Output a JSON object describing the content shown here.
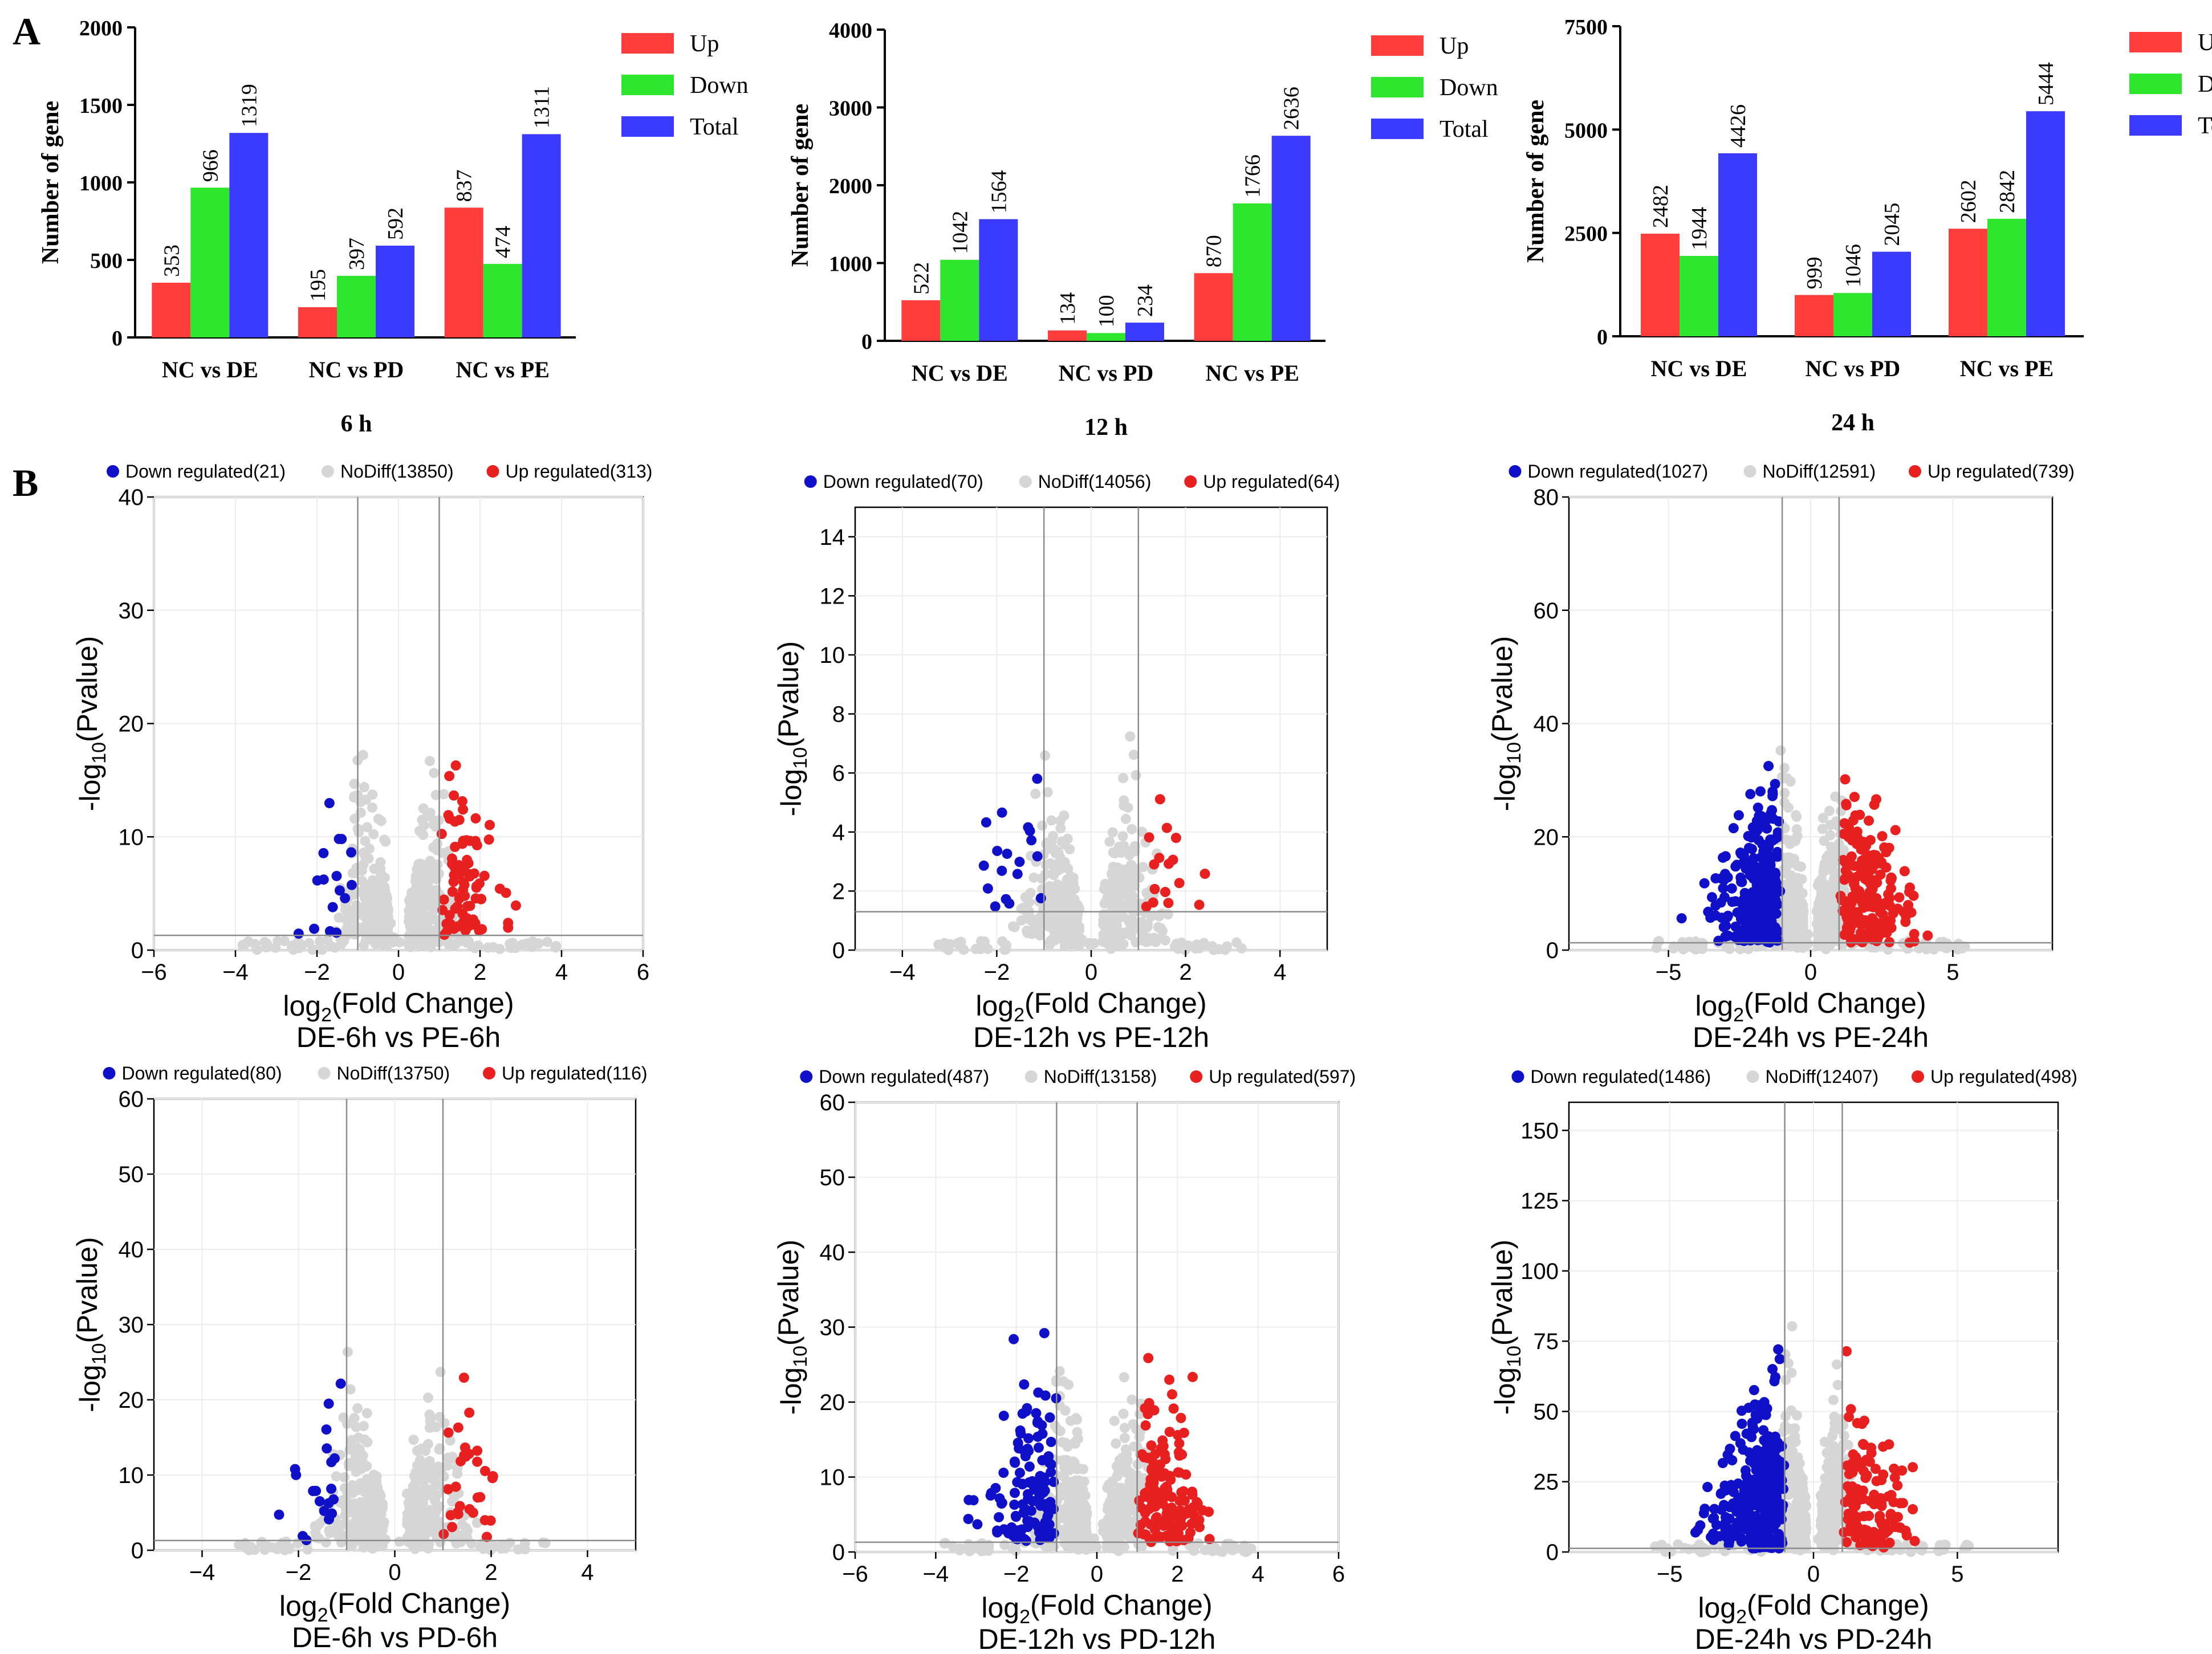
{
  "panel_labels": [
    "A",
    "B"
  ],
  "colors": {
    "up": "#ff3d3d",
    "down": "#2fe62f",
    "total": "#3b3bff",
    "volcano_down": "#1010c8",
    "volcano_up": "#e82020",
    "volcano_nodiff": "#d6d6d6"
  },
  "chart_data": [
    {
      "type": "bar",
      "title": "6 h",
      "ylabel": "Number of gene",
      "categories": [
        "NC vs DE",
        "NC vs PD",
        "NC vs PE"
      ],
      "series": [
        {
          "name": "Up",
          "values": [
            353,
            195,
            837
          ]
        },
        {
          "name": "Down",
          "values": [
            966,
            397,
            474
          ]
        },
        {
          "name": "Total",
          "values": [
            1319,
            592,
            1311
          ]
        }
      ],
      "ylim": [
        0,
        2000
      ],
      "yticks": [
        0,
        500,
        1000,
        1500,
        2000
      ],
      "legend": "top-right"
    },
    {
      "type": "bar",
      "title": "12 h",
      "ylabel": "Number of gene",
      "categories": [
        "NC vs DE",
        "NC vs PD",
        "NC vs PE"
      ],
      "series": [
        {
          "name": "Up",
          "values": [
            522,
            134,
            870
          ]
        },
        {
          "name": "Down",
          "values": [
            1042,
            100,
            1766
          ]
        },
        {
          "name": "Total",
          "values": [
            1564,
            234,
            2636
          ]
        }
      ],
      "ylim": [
        0,
        4000
      ],
      "yticks": [
        0,
        1000,
        2000,
        3000,
        4000
      ],
      "legend": "top-right"
    },
    {
      "type": "bar",
      "title": "24 h",
      "ylabel": "Number of gene",
      "categories": [
        "NC vs DE",
        "NC vs PD",
        "NC vs PE"
      ],
      "series": [
        {
          "name": "Up",
          "values": [
            2482,
            999,
            2602
          ]
        },
        {
          "name": "Down",
          "values": [
            1944,
            1046,
            2842
          ]
        },
        {
          "name": "Total",
          "values": [
            4426,
            2045,
            5444
          ]
        }
      ],
      "ylim": [
        0,
        7500
      ],
      "yticks": [
        0,
        2500,
        5000,
        7500
      ],
      "legend": "top-right"
    },
    {
      "type": "scatter",
      "title": "DE-6h vs PE-6h",
      "xlabel_prefix": "log",
      "xlabel_sub": "2",
      "xlabel_suffix": "(Fold Change)",
      "ylabel_prefix": "-log",
      "ylabel_sub": "10",
      "ylabel_suffix": "(Pvalue)",
      "legend": [
        "Down regulated(21)",
        "NoDiff(13850)",
        "Up regulated(313)"
      ],
      "xlim": [
        -6,
        6
      ],
      "ylim": [
        0,
        40
      ],
      "xticks": [
        -6,
        -4,
        -2,
        0,
        2,
        4,
        6
      ],
      "yticks": [
        0,
        10,
        20,
        30,
        40
      ],
      "fc_threshold": 1,
      "p_threshold_log": 1.3,
      "down_count": 21,
      "nodiff_count": 13850,
      "up_count": 313
    },
    {
      "type": "scatter",
      "title": "DE-12h vs PE-12h",
      "xlabel_prefix": "log",
      "xlabel_sub": "2",
      "xlabel_suffix": "(Fold Change)",
      "ylabel_prefix": "-log",
      "ylabel_sub": "10",
      "ylabel_suffix": "(Pvalue)",
      "legend": [
        "Down regulated(70)",
        "NoDiff(14056)",
        "Up regulated(64)"
      ],
      "xlim": [
        -5,
        5
      ],
      "ylim": [
        0,
        15
      ],
      "xticks": [
        -4,
        -2,
        0,
        2,
        4
      ],
      "yticks": [
        0,
        2,
        4,
        6,
        8,
        10,
        12,
        14
      ],
      "fc_threshold": 1,
      "p_threshold_log": 1.3,
      "down_count": 70,
      "nodiff_count": 14056,
      "up_count": 64
    },
    {
      "type": "scatter",
      "title": "DE-24h vs PE-24h",
      "xlabel_prefix": "log",
      "xlabel_sub": "2",
      "xlabel_suffix": "(Fold Change)",
      "ylabel_prefix": "-log",
      "ylabel_sub": "10",
      "ylabel_suffix": "(Pvalue)",
      "legend": [
        "Down regulated(1027)",
        "NoDiff(12591)",
        "Up regulated(739)"
      ],
      "xlim": [
        -8.5,
        8.5
      ],
      "ylim": [
        0,
        80
      ],
      "xticks": [
        -5,
        0,
        5
      ],
      "yticks": [
        0,
        20,
        40,
        60,
        80
      ],
      "fc_threshold": 1,
      "p_threshold_log": 1.3,
      "down_count": 1027,
      "nodiff_count": 12591,
      "up_count": 739
    },
    {
      "type": "scatter",
      "title": "DE-6h vs PD-6h",
      "xlabel_prefix": "log",
      "xlabel_sub": "2",
      "xlabel_suffix": "(Fold Change)",
      "ylabel_prefix": "-log",
      "ylabel_sub": "10",
      "ylabel_suffix": "(Pvalue)",
      "legend": [
        "Down regulated(80)",
        "NoDiff(13750)",
        "Up regulated(116)"
      ],
      "xlim": [
        -5,
        5
      ],
      "ylim": [
        0,
        60
      ],
      "xticks": [
        -4,
        -2,
        0,
        2,
        4
      ],
      "yticks": [
        0,
        10,
        20,
        30,
        40,
        50,
        60
      ],
      "fc_threshold": 1,
      "p_threshold_log": 1.3,
      "down_count": 80,
      "nodiff_count": 13750,
      "up_count": 116
    },
    {
      "type": "scatter",
      "title": "DE-12h vs PD-12h",
      "xlabel_prefix": "log",
      "xlabel_sub": "2",
      "xlabel_suffix": "(Fold Change)",
      "ylabel_prefix": "-log",
      "ylabel_sub": "10",
      "ylabel_suffix": "(Pvalue)",
      "legend": [
        "Down regulated(487)",
        "NoDiff(13158)",
        "Up regulated(597)"
      ],
      "xlim": [
        -6,
        6
      ],
      "ylim": [
        0,
        60
      ],
      "xticks": [
        -6,
        -4,
        -2,
        0,
        2,
        4,
        6
      ],
      "yticks": [
        0,
        10,
        20,
        30,
        40,
        50,
        60
      ],
      "fc_threshold": 1,
      "p_threshold_log": 1.3,
      "down_count": 487,
      "nodiff_count": 13158,
      "up_count": 597
    },
    {
      "type": "scatter",
      "title": "DE-24h vs PD-24h",
      "xlabel_prefix": "log",
      "xlabel_sub": "2",
      "xlabel_suffix": "(Fold Change)",
      "ylabel_prefix": "-log",
      "ylabel_sub": "10",
      "ylabel_suffix": "(Pvalue)",
      "legend": [
        "Down regulated(1486)",
        "NoDiff(12407)",
        "Up regulated(498)"
      ],
      "xlim": [
        -8.5,
        8.5
      ],
      "ylim": [
        0,
        160
      ],
      "xticks": [
        -5,
        0,
        5
      ],
      "yticks": [
        0,
        25,
        50,
        75,
        100,
        125,
        150
      ],
      "fc_threshold": 1,
      "p_threshold_log": 1.3,
      "down_count": 1486,
      "nodiff_count": 12407,
      "up_count": 498
    }
  ]
}
